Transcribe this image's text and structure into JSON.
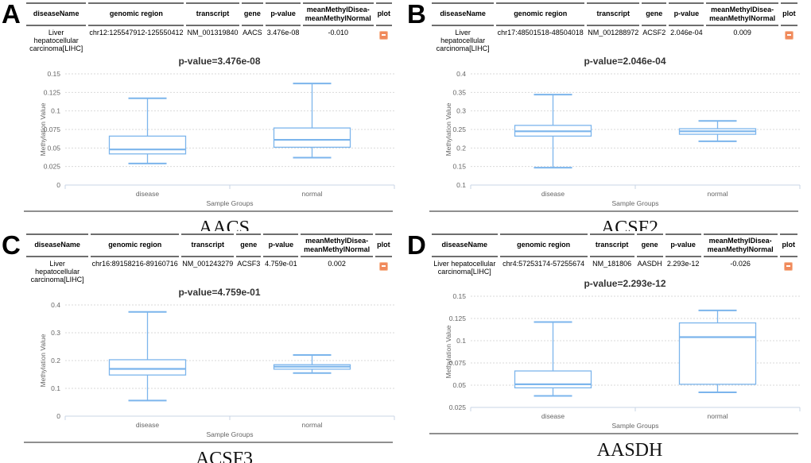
{
  "colors": {
    "box_stroke": "#7cb5ec",
    "axis_line": "#c9d4e6",
    "grid_line": "#d9d9d9",
    "tick_text": "#666666",
    "title_text": "#333333",
    "plot_icon_bg": "#f08a5c",
    "plot_icon_border": "#f8bc9a",
    "header_border": "#6e6e6e"
  },
  "table_headers": {
    "disease": "diseaseName",
    "region": "genomic region",
    "transcript": "transcript",
    "gene": "gene",
    "pval": "p-value",
    "mean_diff": "meanMethylDisea-meanMethylNormal",
    "plot": "plot"
  },
  "panels": [
    {
      "letter": "A",
      "gene_label": "AACS",
      "row": {
        "disease_name": "Liver hepatocellular carcinoma[LIHC]",
        "genomic_region": "chr12:125547912-125550412",
        "transcript": "NM_001319840",
        "gene": "AACS",
        "p_value": "3.476e-08",
        "mean_diff": "-0.010"
      }
    },
    {
      "letter": "B",
      "gene_label": "ACSF2",
      "row": {
        "disease_name": "Liver hepatocellular carcinoma[LIHC]",
        "genomic_region": "chr17:48501518-48504018",
        "transcript": "NM_001288972",
        "gene": "ACSF2",
        "p_value": "2.046e-04",
        "mean_diff": "0.009"
      }
    },
    {
      "letter": "C",
      "gene_label": "ACSF3",
      "row": {
        "disease_name": "Liver hepatocellular carcinoma[LIHC]",
        "genomic_region": "chr16:89158216-89160716",
        "transcript": "NM_001243279",
        "gene": "ACSF3",
        "p_value": "4.759e-01",
        "mean_diff": "0.002"
      }
    },
    {
      "letter": "D",
      "gene_label": "AASDH",
      "row": {
        "disease_name": "Liver hepatocellular carcinoma[LIHC]",
        "genomic_region": "chr4:57253174-57255674",
        "transcript": "NM_181806",
        "gene": "AASDH",
        "p_value": "2.293e-12",
        "mean_diff": "-0.026"
      }
    }
  ],
  "chart_data": [
    {
      "type": "boxplot",
      "title": "p-value=3.476e-08",
      "xlabel": "Sample Groups",
      "ylabel": "Methylation Value",
      "categories": [
        "disease",
        "normal"
      ],
      "ylim": [
        0,
        0.15
      ],
      "yticks": [
        0,
        0.025,
        0.05,
        0.075,
        0.1,
        0.125,
        0.15
      ],
      "grid": true,
      "legend": "none",
      "series": [
        {
          "name": "disease",
          "low": 0.029,
          "q1": 0.042,
          "median": 0.048,
          "q3": 0.066,
          "high": 0.117
        },
        {
          "name": "normal",
          "low": 0.037,
          "q1": 0.051,
          "median": 0.061,
          "q3": 0.077,
          "high": 0.137
        }
      ]
    },
    {
      "type": "boxplot",
      "title": "p-value=2.046e-04",
      "xlabel": "Sample Groups",
      "ylabel": "Methylation Value",
      "categories": [
        "disease",
        "normal"
      ],
      "ylim": [
        0.1,
        0.4
      ],
      "yticks": [
        0.1,
        0.15,
        0.2,
        0.25,
        0.3,
        0.35,
        0.4
      ],
      "grid": true,
      "legend": "none",
      "series": [
        {
          "name": "disease",
          "low": 0.147,
          "q1": 0.232,
          "median": 0.245,
          "q3": 0.261,
          "high": 0.344
        },
        {
          "name": "normal",
          "low": 0.218,
          "q1": 0.237,
          "median": 0.245,
          "q3": 0.252,
          "high": 0.273
        }
      ]
    },
    {
      "type": "boxplot",
      "title": "p-value=4.759e-01",
      "xlabel": "Sample Groups",
      "ylabel": "Methylation Value",
      "categories": [
        "disease",
        "normal"
      ],
      "ylim": [
        0,
        0.4
      ],
      "yticks": [
        0,
        0.1,
        0.2,
        0.3,
        0.4
      ],
      "grid": true,
      "legend": "none",
      "series": [
        {
          "name": "disease",
          "low": 0.056,
          "q1": 0.148,
          "median": 0.17,
          "q3": 0.203,
          "high": 0.375
        },
        {
          "name": "normal",
          "low": 0.155,
          "q1": 0.169,
          "median": 0.178,
          "q3": 0.185,
          "high": 0.22
        }
      ]
    },
    {
      "type": "boxplot",
      "title": "p-value=2.293e-12",
      "xlabel": "Sample Groups",
      "ylabel": "Methylation Value",
      "categories": [
        "disease",
        "normal"
      ],
      "ylim": [
        0.025,
        0.15
      ],
      "yticks": [
        0.025,
        0.05,
        0.075,
        0.1,
        0.125,
        0.15
      ],
      "grid": true,
      "legend": "none",
      "series": [
        {
          "name": "disease",
          "low": 0.038,
          "q1": 0.047,
          "median": 0.051,
          "q3": 0.066,
          "high": 0.121
        },
        {
          "name": "normal",
          "low": 0.042,
          "q1": 0.051,
          "median": 0.104,
          "q3": 0.12,
          "high": 0.134
        }
      ]
    }
  ]
}
